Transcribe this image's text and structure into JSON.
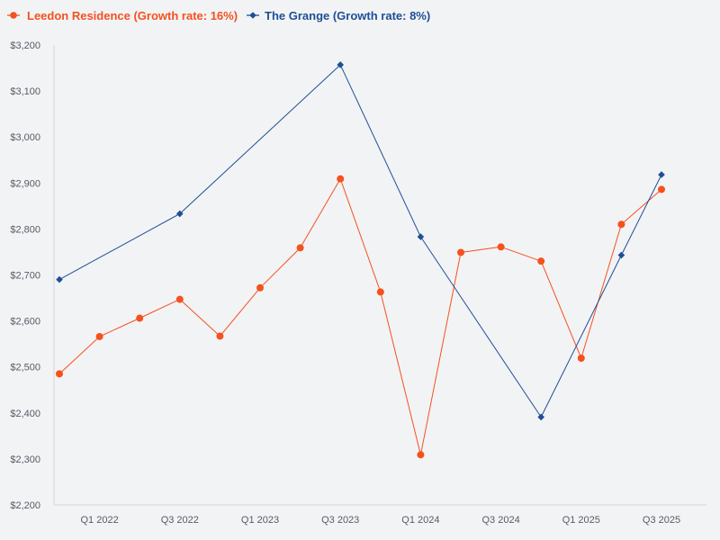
{
  "chart_data": {
    "type": "line",
    "categories": [
      "Q4 2021",
      "Q1 2022",
      "Q2 2022",
      "Q3 2022",
      "Q4 2022",
      "Q1 2023",
      "Q2 2023",
      "Q3 2023",
      "Q4 2023",
      "Q1 2024",
      "Q2 2024",
      "Q3 2024",
      "Q4 2024",
      "Q1 2025",
      "Q2 2025",
      "Q3 2025",
      "Q4 2025"
    ],
    "x_tick_labels": [
      "Q1 2022",
      "Q3 2022",
      "Q1 2023",
      "Q3 2023",
      "Q1 2024",
      "Q3 2024",
      "Q1 2025",
      "Q3 2025"
    ],
    "x_tick_indices": [
      1,
      3,
      5,
      7,
      9,
      11,
      13,
      15
    ],
    "y_ticks": [
      "$2,200",
      "$2,300",
      "$2,400",
      "$2,500",
      "$2,600",
      "$2,700",
      "$2,800",
      "$2,900",
      "$3,000",
      "$3,100",
      "$3,200"
    ],
    "ylim": [
      2200,
      3200
    ],
    "legend_position": "top-left",
    "series": [
      {
        "name": "Leedon Residence (Growth rate: 16%)",
        "color": "#f4511e",
        "marker": "circle",
        "points": [
          [
            0,
            2485
          ],
          [
            1,
            2566
          ],
          [
            2,
            2606
          ],
          [
            3,
            2647
          ],
          [
            4,
            2567
          ],
          [
            5,
            2672
          ],
          [
            6,
            2759
          ],
          [
            7,
            2909
          ],
          [
            8,
            2663
          ],
          [
            9,
            2309
          ],
          [
            10,
            2749
          ],
          [
            11,
            2761
          ],
          [
            12,
            2730
          ],
          [
            13,
            2519
          ],
          [
            14,
            2810
          ],
          [
            15,
            2886
          ]
        ]
      },
      {
        "name": "The Grange (Growth rate: 8%)",
        "color": "#1f4e96",
        "marker": "diamond",
        "points": [
          [
            0,
            2690
          ],
          [
            3,
            2833
          ],
          [
            7,
            3157
          ],
          [
            9,
            2783
          ],
          [
            12,
            2391
          ],
          [
            14,
            2743
          ],
          [
            15,
            2918
          ]
        ]
      }
    ]
  }
}
